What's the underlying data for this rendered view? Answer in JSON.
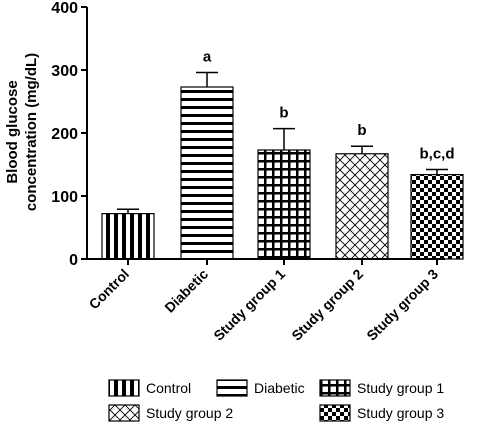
{
  "chart_data": {
    "type": "bar",
    "title": "",
    "xlabel": "",
    "ylabel": [
      "Blood glucose",
      "concentration (mg/dL)"
    ],
    "ylim": [
      0,
      400
    ],
    "yticks": [
      0,
      100,
      200,
      300,
      400
    ],
    "categories": [
      "Control",
      "Diabetic",
      "Study group 1",
      "Study group 2",
      "Study group 3"
    ],
    "values": [
      72,
      273,
      173,
      167,
      134
    ],
    "errors": [
      7,
      23,
      34,
      12,
      8
    ],
    "significance": [
      "",
      "a",
      "b",
      "b",
      "b,c,d"
    ],
    "patterns": [
      "vertical-stripes",
      "horizontal-stripes",
      "grid",
      "crosshatch",
      "checker"
    ],
    "legend": {
      "placement": "bottom",
      "entries": [
        "Control",
        "Diabetic",
        "Study group 1",
        "Study group 2",
        "Study group 3"
      ]
    },
    "grid": false
  }
}
